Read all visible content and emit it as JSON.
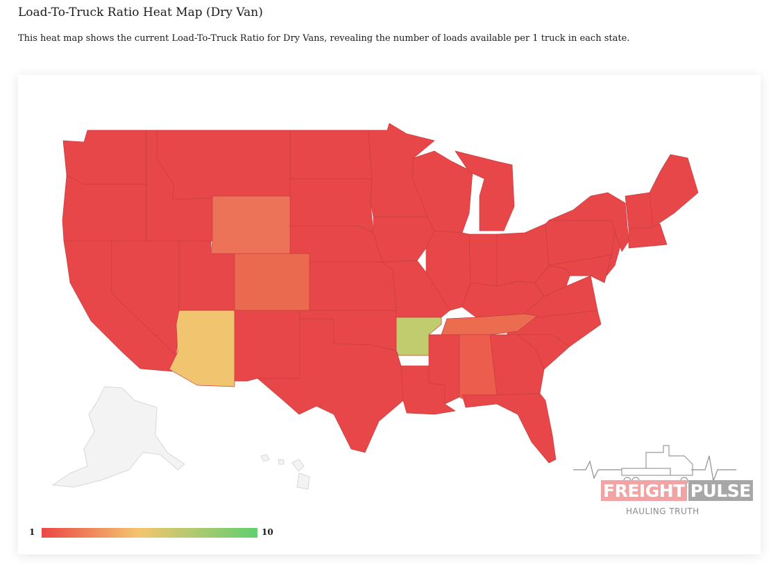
{
  "page": {
    "title": "Load-To-Truck Ratio Heat Map (Dry Van)",
    "description": "This heat map shows the current Load-To-Truck Ratio for Dry Vans, revealing the number of loads available per 1 truck in each state."
  },
  "legend": {
    "min_label": "1",
    "max_label": "10",
    "min_color": "#ec4646",
    "mid_color": "#f3c56f",
    "max_color": "#62cf6f"
  },
  "map": {
    "default_color": "#e8474a",
    "no_data_color": "#f3f3f3",
    "highlighted_states": [
      {
        "state": "Wyoming",
        "color": "#ec7358"
      },
      {
        "state": "Colorado",
        "color": "#ea6a50"
      },
      {
        "state": "Arizona",
        "color": "#f1c470"
      },
      {
        "state": "Arkansas",
        "color": "#c1cc6f"
      },
      {
        "state": "Tennessee",
        "color": "#ec6c4f"
      },
      {
        "state": "Alabama",
        "color": "#ec5d4e"
      }
    ]
  },
  "logo": {
    "brand_part1": "FREIGHT",
    "brand_part2": "PULSE",
    "tagline": "HAULING TRUTH",
    "icon": "truck-heartbeat-icon"
  }
}
